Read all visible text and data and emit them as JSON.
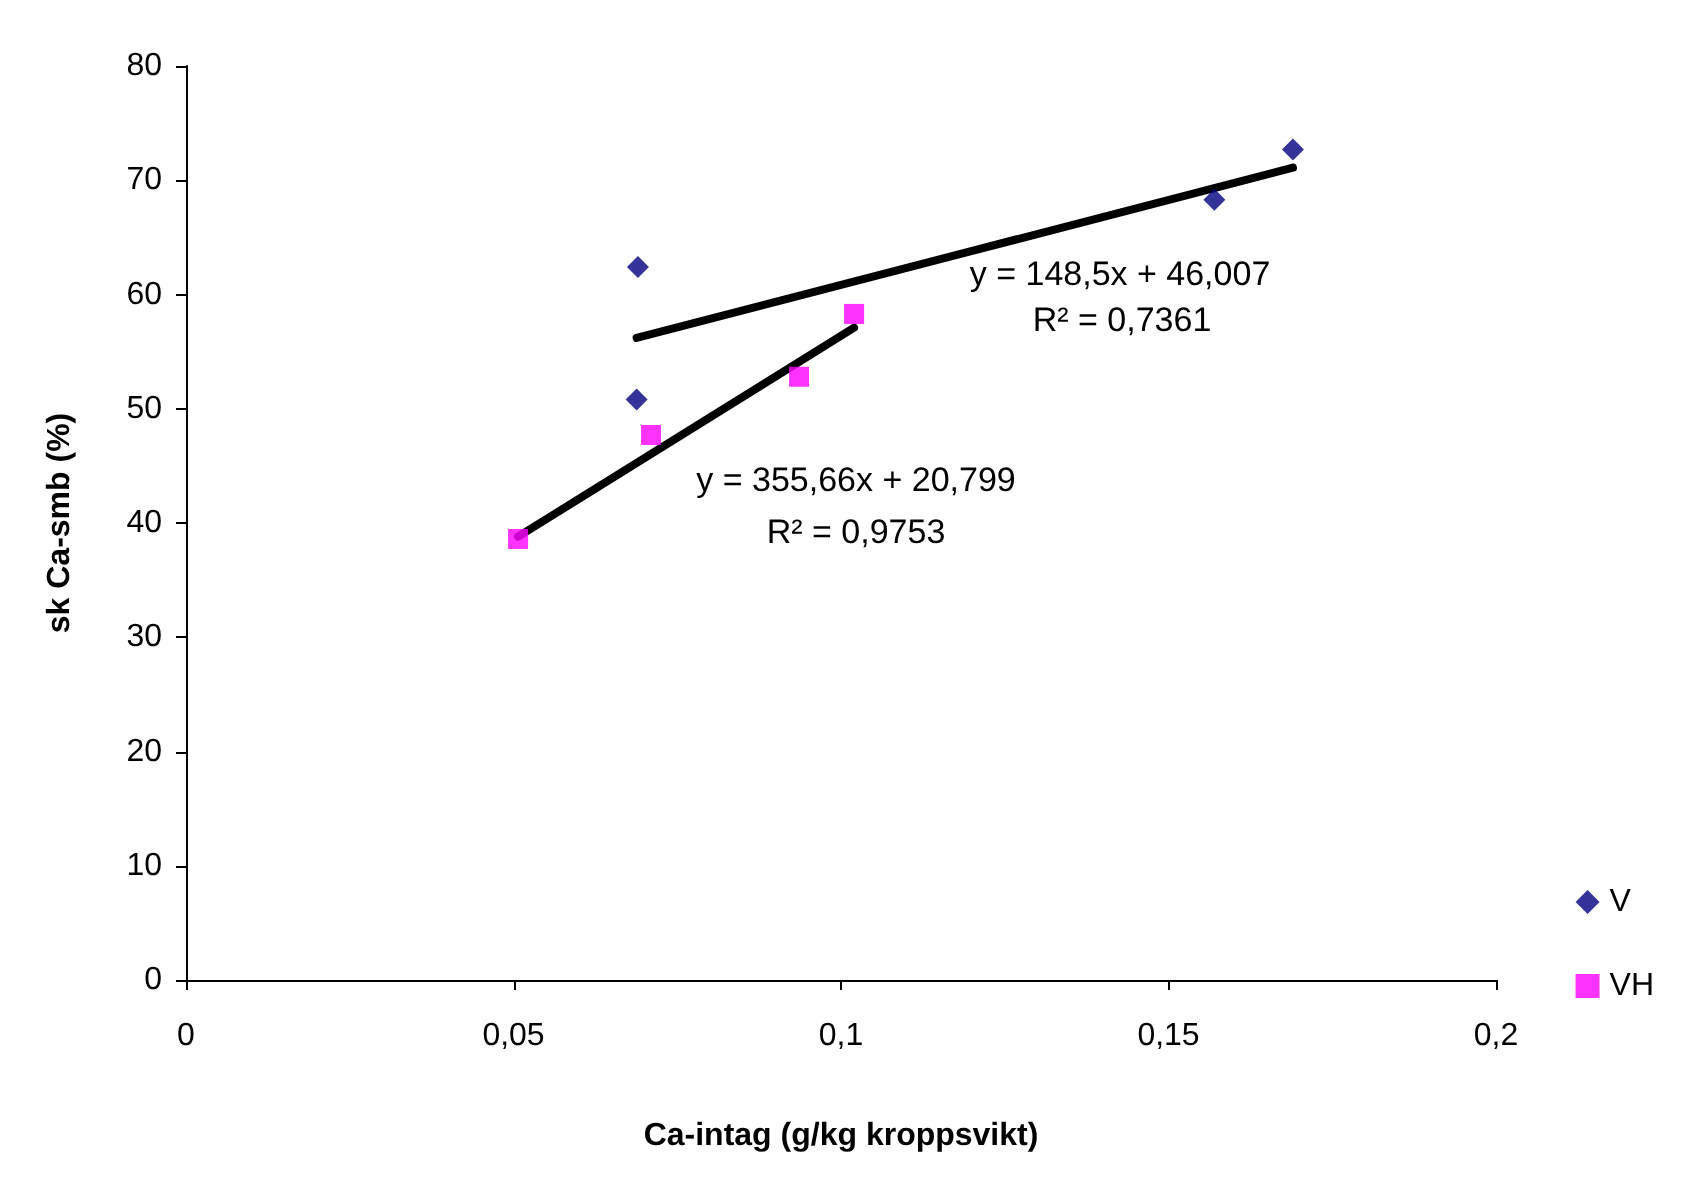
{
  "chart_data": {
    "type": "scatter",
    "xlabel": "Ca-intag (g/kg kroppsvikt)",
    "ylabel": "sk Ca-smb (%)",
    "xlim": [
      0,
      0.2
    ],
    "xticks": [
      0,
      {
        "value": 0.05,
        "label": "0,05"
      },
      {
        "value": 0.1,
        "label": "0,1"
      },
      {
        "value": 0.15,
        "label": "0,15"
      },
      {
        "value": 0.2,
        "label": "0,2"
      }
    ],
    "ylim": [
      0,
      80
    ],
    "yticks": [
      0,
      10,
      20,
      30,
      40,
      50,
      60,
      70,
      80
    ],
    "grid": false,
    "legend": "right",
    "series": [
      {
        "name": "V",
        "color": "#000080",
        "marker": "diamond",
        "x": [
          0.069,
          0.0688,
          0.157,
          0.169
        ],
        "values": [
          62.4,
          50.8,
          68.3,
          72.7
        ]
      },
      {
        "name": "VH",
        "color": "#ff00ff",
        "marker": "square",
        "x": [
          0.0507,
          0.071,
          0.0936,
          0.102
        ],
        "values": [
          38.6,
          47.7,
          52.8,
          58.3
        ]
      },
      {
        "type": "line",
        "color": "#000000",
        "marker": "none",
        "x": [
          0.0688,
          0.169
        ],
        "values": [
          56.2,
          71.1
        ]
      },
      {
        "type": "line",
        "color": "#000000",
        "marker": "none",
        "x": [
          0.0507,
          0.102
        ],
        "values": [
          38.8,
          57.1
        ]
      }
    ],
    "annotations": [
      "y = 148,5x + 46,007",
      "R² = 0,7361",
      "y = 355,66x + 20,799",
      "R² = 0,9753"
    ]
  }
}
